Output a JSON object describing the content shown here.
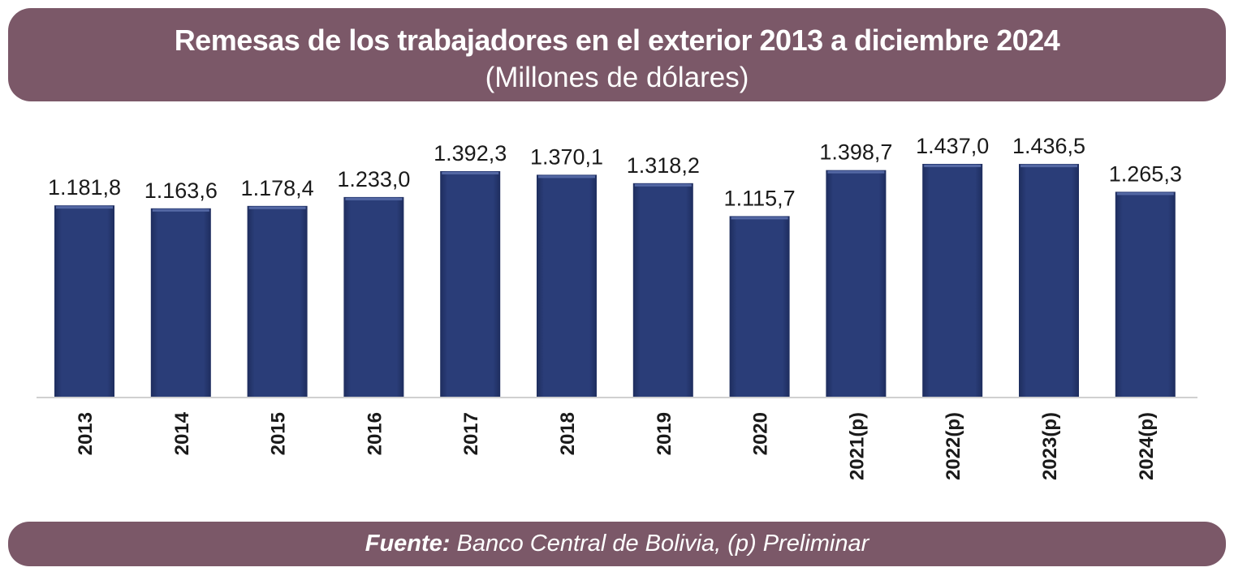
{
  "title": {
    "main": "Remesas de los trabajadores en el exterior 2013 a diciembre 2024",
    "sub": "(Millones de dólares)"
  },
  "colors": {
    "banner": "#7b5868",
    "bar": "#283a72",
    "bar_highlight": "#5468a4",
    "text": "#1a1a1a"
  },
  "chart_data": {
    "type": "bar",
    "title": "Remesas de los trabajadores en el exterior 2013 a diciembre 2024",
    "subtitle": "(Millones de dólares)",
    "categories": [
      "2013",
      "2014",
      "2015",
      "2016",
      "2017",
      "2018",
      "2019",
      "2020",
      "2021(p)",
      "2022(p)",
      "2023(p)",
      "2024(p)"
    ],
    "values": [
      1181.8,
      1163.6,
      1178.4,
      1233.0,
      1392.3,
      1370.1,
      1318.2,
      1115.7,
      1398.7,
      1437.0,
      1436.5,
      1265.3
    ],
    "value_labels": [
      "1.181,8",
      "1.163,6",
      "1.178,4",
      "1.233,0",
      "1.392,3",
      "1.370,1",
      "1.318,2",
      "1.115,7",
      "1.398,7",
      "1.437,0",
      "1.436,5",
      "1.265,3"
    ],
    "ylim": [
      0,
      1437
    ],
    "grid": false,
    "legend": "none",
    "xlabel": "",
    "ylabel": ""
  },
  "footer": {
    "source_label": "Fuente:",
    "source_text": " Banco Central de Bolivia, (p) Preliminar"
  }
}
